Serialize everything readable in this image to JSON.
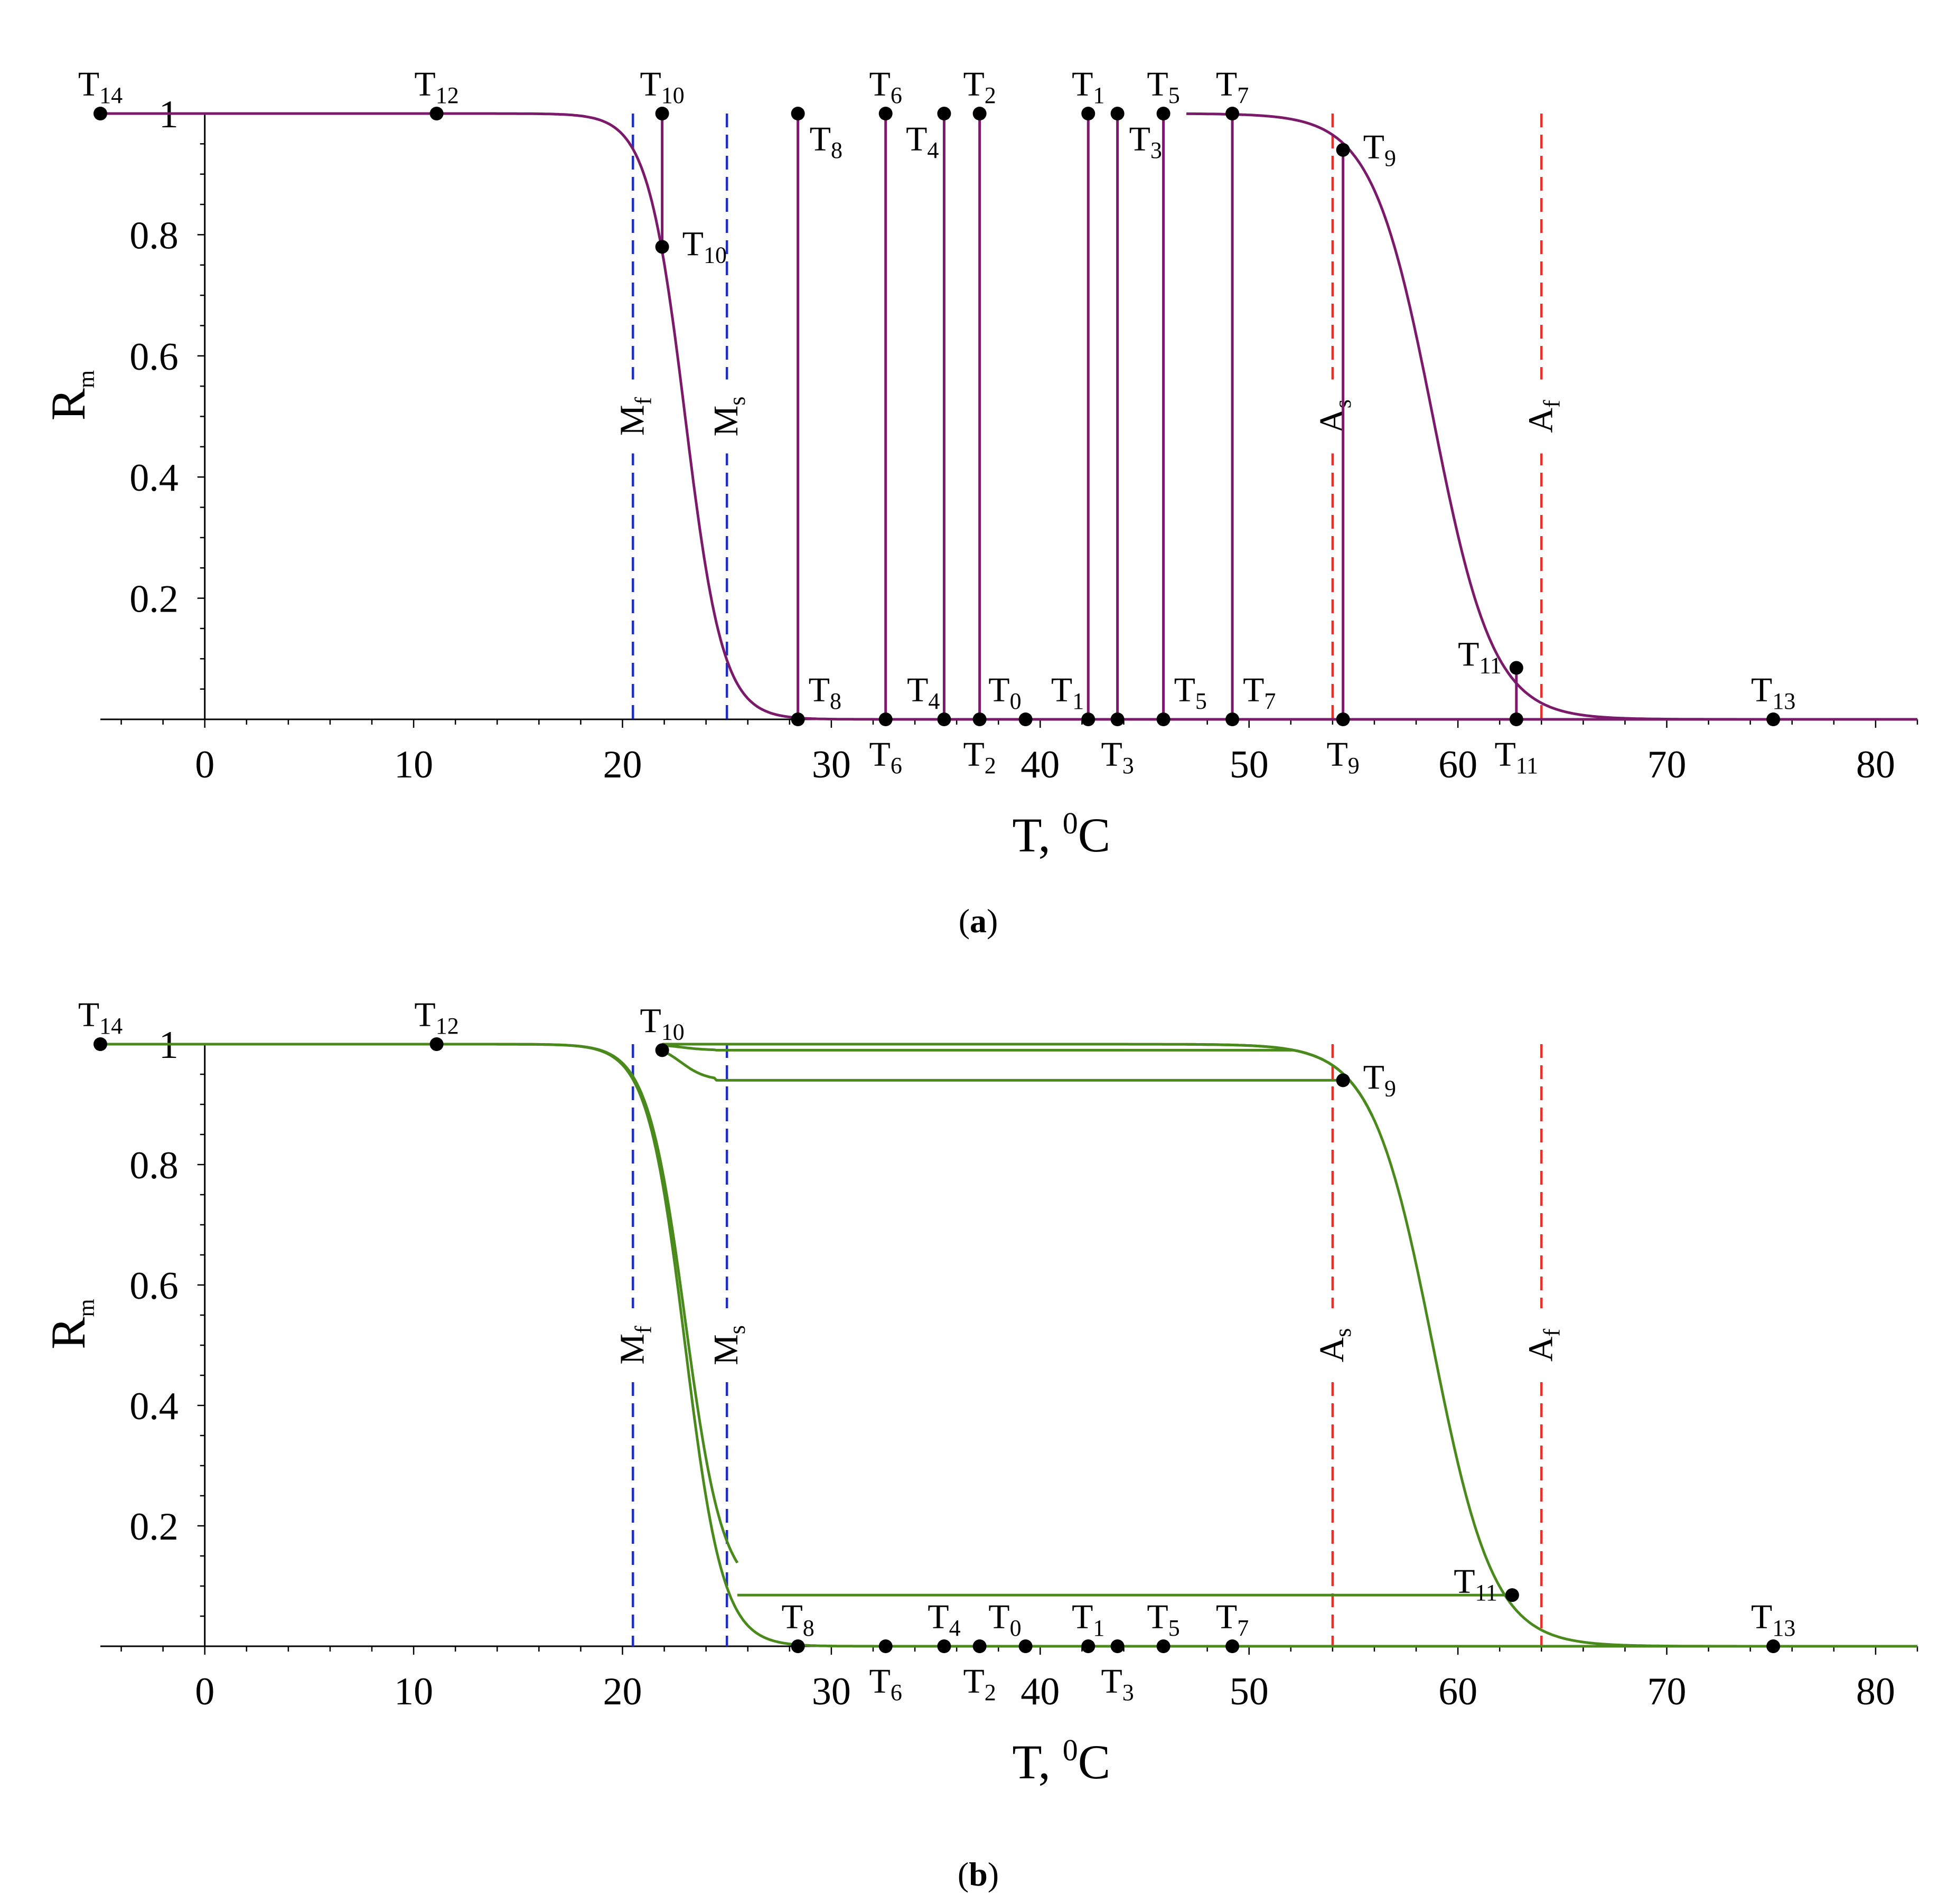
{
  "chart_data": [
    {
      "panel": "a",
      "type": "line",
      "caption_letter": "a",
      "xlabel": "T, ",
      "xlabel_sup": "0",
      "xlabel_unit": "C",
      "ylabel": "R",
      "ylabel_sub": "m",
      "xlim": [
        -5,
        82
      ],
      "ylim": [
        0,
        1
      ],
      "x_ticks": [
        0,
        10,
        20,
        30,
        40,
        50,
        60,
        70,
        80
      ],
      "y_ticks": [
        "1",
        "0.8",
        "0.6",
        "0.4",
        "0.2"
      ],
      "y_tick_values": [
        1,
        0.8,
        0.6,
        0.4,
        0.2
      ],
      "line_color": "#7b1a6a",
      "martensite_color": "#1f2fbf",
      "austenite_color": "#e8302a",
      "transition_lines": [
        {
          "x": 20.5,
          "label": "M",
          "sub": "f",
          "kind": "martensite"
        },
        {
          "x": 25.0,
          "label": "M",
          "sub": "s",
          "kind": "martensite"
        },
        {
          "x": 54.0,
          "label": "A",
          "sub": "s",
          "kind": "austenite"
        },
        {
          "x": 64.0,
          "label": "A",
          "sub": "f",
          "kind": "austenite"
        }
      ],
      "cooling_curve": {
        "center": 23.0,
        "width": 0.9,
        "low": 0
      },
      "heating_curve": {
        "center": 58.8,
        "width": 1.45
      },
      "vertical_segments": [
        {
          "x": 21.9,
          "from": 0.78,
          "to": 1
        },
        {
          "x": 28.4,
          "from": 0,
          "to": 1
        },
        {
          "x": 32.6,
          "from": 0,
          "to": 1
        },
        {
          "x": 35.4,
          "from": 0,
          "to": 1
        },
        {
          "x": 37.1,
          "from": 0,
          "to": 1
        },
        {
          "x": 42.3,
          "from": 0,
          "to": 1
        },
        {
          "x": 43.7,
          "from": 0,
          "to": 1
        },
        {
          "x": 45.9,
          "from": 0,
          "to": 1
        },
        {
          "x": 49.2,
          "from": 0,
          "to": 1
        },
        {
          "x": 54.5,
          "from": 0,
          "to": 0.94
        },
        {
          "x": 62.8,
          "from": 0,
          "to": 0.085
        }
      ],
      "points": [
        {
          "x": -5.0,
          "y": 1,
          "label": "T",
          "sub": "14",
          "pos": "top"
        },
        {
          "x": 11.1,
          "y": 1,
          "label": "T",
          "sub": "12",
          "pos": "top"
        },
        {
          "x": 21.9,
          "y": 1,
          "label": "T",
          "sub": "10",
          "pos": "top"
        },
        {
          "x": 32.6,
          "y": 1,
          "label": "T",
          "sub": "6",
          "pos": "top"
        },
        {
          "x": 37.1,
          "y": 1,
          "label": "T",
          "sub": "2",
          "pos": "top"
        },
        {
          "x": 42.3,
          "y": 1,
          "label": "T",
          "sub": "1",
          "pos": "top"
        },
        {
          "x": 45.9,
          "y": 1,
          "label": "T",
          "sub": "5",
          "pos": "top"
        },
        {
          "x": 49.2,
          "y": 1,
          "label": "T",
          "sub": "7",
          "pos": "top"
        },
        {
          "x": 28.4,
          "y": 1,
          "label": "T",
          "sub": "8",
          "pos": "below-right"
        },
        {
          "x": 35.4,
          "y": 1,
          "label": "T",
          "sub": "4",
          "pos": "below-left"
        },
        {
          "x": 43.7,
          "y": 1,
          "label": "T",
          "sub": "3",
          "pos": "below-right"
        },
        {
          "x": 54.5,
          "y": 0.94,
          "label": "T",
          "sub": "9",
          "pos": "right"
        },
        {
          "x": 21.9,
          "y": 0.78,
          "label": "T",
          "sub": "10",
          "pos": "right"
        },
        {
          "x": 62.8,
          "y": 0.085,
          "label": "T",
          "sub": "11",
          "pos": "left"
        },
        {
          "x": 28.4,
          "y": 0,
          "label": "T",
          "sub": "8",
          "pos": "top-right"
        },
        {
          "x": 32.6,
          "y": 0,
          "label": "T",
          "sub": "6",
          "pos": "bottom"
        },
        {
          "x": 35.4,
          "y": 0,
          "label": "T",
          "sub": "4",
          "pos": "top-left"
        },
        {
          "x": 37.1,
          "y": 0,
          "label": "T",
          "sub": "2",
          "pos": "bottom"
        },
        {
          "x": 39.3,
          "y": 0,
          "label": "T",
          "sub": "0",
          "pos": "top-left"
        },
        {
          "x": 42.3,
          "y": 0,
          "label": "T",
          "sub": "1",
          "pos": "top-left"
        },
        {
          "x": 43.7,
          "y": 0,
          "label": "T",
          "sub": "3",
          "pos": "bottom"
        },
        {
          "x": 45.9,
          "y": 0,
          "label": "T",
          "sub": "5",
          "pos": "top-right"
        },
        {
          "x": 49.2,
          "y": 0,
          "label": "T",
          "sub": "7",
          "pos": "top-right"
        },
        {
          "x": 54.5,
          "y": 0,
          "label": "T",
          "sub": "9",
          "pos": "bottom"
        },
        {
          "x": 62.8,
          "y": 0,
          "label": "T",
          "sub": "11",
          "pos": "bottom"
        },
        {
          "x": 75.1,
          "y": 0,
          "label": "T",
          "sub": "13",
          "pos": "top"
        }
      ]
    },
    {
      "panel": "b",
      "type": "line",
      "caption_letter": "b",
      "xlabel": "T, ",
      "xlabel_sup": "0",
      "xlabel_unit": "C",
      "ylabel": "R",
      "ylabel_sub": "m",
      "xlim": [
        -5,
        82
      ],
      "ylim": [
        0,
        1
      ],
      "x_ticks": [
        0,
        10,
        20,
        30,
        40,
        50,
        60,
        70,
        80
      ],
      "y_ticks": [
        "1",
        "0.8",
        "0.6",
        "0.4",
        "0.2"
      ],
      "y_tick_values": [
        1,
        0.8,
        0.6,
        0.4,
        0.2
      ],
      "line_color": "#4a8a1c",
      "martensite_color": "#1f2fbf",
      "austenite_color": "#e8302a",
      "transition_lines": [
        {
          "x": 20.5,
          "label": "M",
          "sub": "f",
          "kind": "martensite"
        },
        {
          "x": 25.0,
          "label": "M",
          "sub": "s",
          "kind": "martensite"
        },
        {
          "x": 54.0,
          "label": "A",
          "sub": "s",
          "kind": "austenite"
        },
        {
          "x": 64.0,
          "label": "A",
          "sub": "f",
          "kind": "austenite"
        }
      ],
      "cooling_curves": [
        {
          "center": 23.0,
          "width": 0.9,
          "low": 0
        },
        {
          "center": 23.0,
          "width": 0.9,
          "low": 0.085
        }
      ],
      "upper_branches": [
        {
          "plateau": 1.0
        },
        {
          "plateau": 0.99
        },
        {
          "plateau": 0.94
        }
      ],
      "upper_branch_start": 21.9,
      "lower_plateau": {
        "from": 25.5,
        "to": 62.6,
        "y": 0.085
      },
      "heating_curve": {
        "center": 58.8,
        "width": 1.45
      },
      "points": [
        {
          "x": -5.0,
          "y": 1,
          "label": "T",
          "sub": "14",
          "pos": "top"
        },
        {
          "x": 11.1,
          "y": 1,
          "label": "T",
          "sub": "12",
          "pos": "top"
        },
        {
          "x": 21.9,
          "y": 0.99,
          "label": "T",
          "sub": "10",
          "pos": "top"
        },
        {
          "x": 54.5,
          "y": 0.94,
          "label": "T",
          "sub": "9",
          "pos": "right"
        },
        {
          "x": 62.6,
          "y": 0.085,
          "label": "T",
          "sub": "11",
          "pos": "left"
        },
        {
          "x": 28.4,
          "y": 0,
          "label": "T",
          "sub": "8",
          "pos": "top"
        },
        {
          "x": 32.6,
          "y": 0,
          "label": "T",
          "sub": "6",
          "pos": "bottom"
        },
        {
          "x": 35.4,
          "y": 0,
          "label": "T",
          "sub": "4",
          "pos": "top"
        },
        {
          "x": 37.1,
          "y": 0,
          "label": "T",
          "sub": "2",
          "pos": "bottom"
        },
        {
          "x": 39.3,
          "y": 0,
          "label": "T",
          "sub": "0",
          "pos": "top-left"
        },
        {
          "x": 42.3,
          "y": 0,
          "label": "T",
          "sub": "1",
          "pos": "top"
        },
        {
          "x": 43.7,
          "y": 0,
          "label": "T",
          "sub": "3",
          "pos": "bottom"
        },
        {
          "x": 45.9,
          "y": 0,
          "label": "T",
          "sub": "5",
          "pos": "top"
        },
        {
          "x": 49.2,
          "y": 0,
          "label": "T",
          "sub": "7",
          "pos": "top"
        },
        {
          "x": 75.1,
          "y": 0,
          "label": "T",
          "sub": "13",
          "pos": "top"
        }
      ]
    }
  ]
}
